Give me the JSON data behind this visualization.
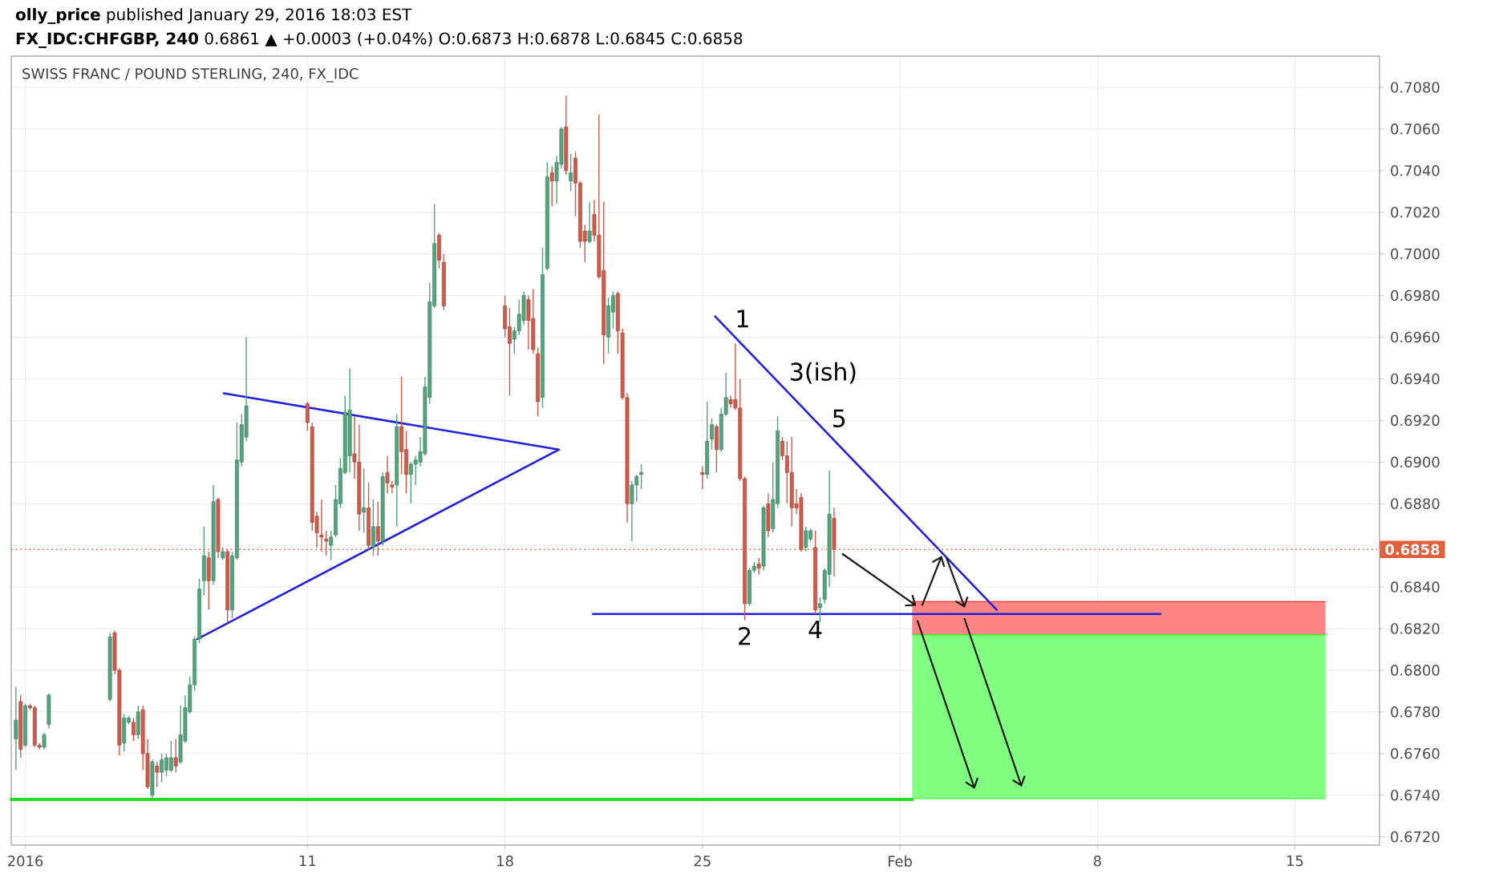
{
  "chart_data": {
    "type": "candlestick",
    "title": "SWISS FRANC / POUND STERLING, 240, FX_IDC",
    "annotations": [
      "**olly_price** published January 29, 2016 18:03 EST",
      "**FX_IDC:CHFGBP, 240** 0.6861 ▲ +0.0003 (+0.04%) O:0.6873 H:0.6878 L:0.6845 C:0.6858",
      {
        "text": "1",
        "x": "2016-01-25T22:00",
        "y": 0.6963
      },
      {
        "text": "2",
        "x": "2016-01-26T12:00",
        "y": 0.6824
      },
      {
        "text": "3(ish)",
        "x": "2016-01-27T20:00",
        "y": 0.6936
      },
      {
        "text": "4",
        "x": "2016-01-29T00:00",
        "y": 0.6827
      },
      {
        "text": "5",
        "x": "2016-01-29T08:00",
        "y": 0.6915
      }
    ],
    "xlim": [
      "2015-12-31T12:00",
      "2016-02-18T00:00"
    ],
    "xticks": [
      {
        "value": "2016-01-01",
        "label": "2016"
      },
      {
        "value": "2016-01-11",
        "label": "11"
      },
      {
        "value": "2016-01-18",
        "label": "18"
      },
      {
        "value": "2016-01-25",
        "label": "25"
      },
      {
        "value": "2016-02-01",
        "label": "Feb"
      },
      {
        "value": "2016-02-08",
        "label": "8"
      },
      {
        "value": "2016-02-15",
        "label": "15"
      }
    ],
    "ylim": [
      0.6716,
      0.7095
    ],
    "yticks": [
      {
        "value": 0.672,
        "label": "0.6720"
      },
      {
        "value": 0.674,
        "label": "0.6740"
      },
      {
        "value": 0.676,
        "label": "0.6760"
      },
      {
        "value": 0.678,
        "label": "0.6780"
      },
      {
        "value": 0.68,
        "label": "0.6800"
      },
      {
        "value": 0.682,
        "label": "0.6820"
      },
      {
        "value": 0.684,
        "label": "0.6840"
      },
      {
        "value": 0.686,
        "label": null
      },
      {
        "value": 0.688,
        "label": "0.6880"
      },
      {
        "value": 0.69,
        "label": "0.6900"
      },
      {
        "value": 0.692,
        "label": "0.6920"
      },
      {
        "value": 0.694,
        "label": "0.6940"
      },
      {
        "value": 0.696,
        "label": "0.6960"
      },
      {
        "value": 0.698,
        "label": "0.6980"
      },
      {
        "value": 0.7,
        "label": "0.7000"
      },
      {
        "value": 0.702,
        "label": "0.7020"
      },
      {
        "value": 0.704,
        "label": "0.7040"
      },
      {
        "value": 0.706,
        "label": "0.7060"
      },
      {
        "value": 0.708,
        "label": "0.7080"
      }
    ],
    "grid": true,
    "ref_lines": [
      {
        "axis": "y",
        "value": 0.6858,
        "label": "0.6858",
        "color": "#e0603c",
        "line_style": "dotted"
      }
    ],
    "series": [
      {
        "type": "line",
        "color": "#00ff00",
        "x": [
          "2016-02-01T10:24",
          "2016-02-16T02:00"
        ],
        "values": [
          0.6817,
          0.6817
        ],
        "lower": [
          0.6738,
          0.6738
        ],
        "upper": [
          0.6817,
          0.6817
        ]
      },
      {
        "type": "line",
        "color": "#ff0b0b",
        "x": [
          "2016-02-01T10:24",
          "2016-02-16T02:00"
        ],
        "values": [
          0.6833,
          0.6833
        ],
        "lower": [
          0.6817,
          0.6817
        ],
        "upper": [
          0.6833,
          0.6833
        ]
      },
      {
        "type": "line",
        "color": "#22dd22",
        "x": [
          "2015-12-31T12:00",
          "2016-02-01T10:24"
        ],
        "values": [
          0.6738,
          0.6738
        ]
      },
      {
        "type": "line",
        "color": "#2020e0",
        "x": [
          "2016-01-08T00:48",
          "2016-01-19T22:00",
          "2016-01-07T02:24"
        ],
        "values": [
          0.6933,
          0.6906,
          0.6815
        ]
      },
      {
        "type": "line",
        "color": "#2020e0",
        "x": [
          "2016-01-25T10:48",
          "2016-02-04T10:24"
        ],
        "values": [
          0.697,
          0.6829
        ]
      },
      {
        "type": "line",
        "color": "#2020e0",
        "x": [
          "2016-01-21T02:48",
          "2016-02-10T05:36"
        ],
        "values": [
          0.6827,
          0.6827
        ]
      },
      {
        "color": "#53a37d",
        "x": [
          "2015-12-31T16:00",
          "2016-01-01T00:00",
          "2016-01-01T16:00",
          "2016-01-01T20:00",
          "2016-01-04T00:00",
          "2016-01-04T12:00",
          "2016-01-04T16:00",
          "2016-01-05T00:00",
          "2016-01-05T12:00",
          "2016-01-05T20:00",
          "2016-01-06T00:00",
          "2016-01-06T04:00",
          "2016-01-06T12:00",
          "2016-01-06T16:00",
          "2016-01-06T20:00",
          "2016-01-07T00:00",
          "2016-01-07T04:00",
          "2016-01-07T08:00",
          "2016-01-07T16:00",
          "2016-01-08T00:00",
          "2016-01-08T08:00",
          "2016-01-08T12:00",
          "2016-01-08T16:00",
          "2016-01-08T20:00",
          "2016-01-11T20:00",
          "2016-01-12T00:00",
          "2016-01-12T04:00",
          "2016-01-12T08:00",
          "2016-01-12T12:00",
          "2016-01-13T00:00",
          "2016-01-13T08:00",
          "2016-01-13T16:00",
          "2016-01-14T04:00",
          "2016-01-14T16:00",
          "2016-01-14T20:00",
          "2016-01-15T00:00",
          "2016-01-15T04:00",
          "2016-01-15T08:00",
          "2016-01-15T12:00",
          "2016-01-18T08:00",
          "2016-01-18T12:00",
          "2016-01-18T16:00",
          "2016-01-19T08:00",
          "2016-01-19T12:00",
          "2016-01-19T20:00",
          "2016-01-20T00:00",
          "2016-01-20T08:00",
          "2016-01-21T00:00",
          "2016-01-21T16:00",
          "2016-01-21T20:00",
          "2016-01-22T12:00",
          "2016-01-22T16:00",
          "2016-01-22T20:00",
          "2016-01-25T04:00",
          "2016-01-25T08:00",
          "2016-01-25T16:00",
          "2016-01-25T20:00",
          "2016-01-26T16:00",
          "2016-01-26T20:00",
          "2016-01-27T04:00",
          "2016-01-27T12:00",
          "2016-01-27T16:00",
          "2016-01-28T16:00",
          "2016-01-28T20:00",
          "2016-01-29T04:00",
          "2016-01-29T08:00",
          "2016-01-29T12:00"
        ],
        "ohlc": [
          [
            0.6767,
            0.6792,
            0.6752,
            0.6776
          ],
          [
            0.6764,
            0.6784,
            0.6763,
            0.6783
          ],
          [
            0.6763,
            0.677,
            0.6762,
            0.6769
          ],
          [
            0.6774,
            0.6789,
            0.6772,
            0.6788
          ],
          [
            0.6786,
            0.6818,
            0.6785,
            0.6816
          ],
          [
            0.6765,
            0.6779,
            0.6761,
            0.6777
          ],
          [
            0.6775,
            0.6778,
            0.6774,
            0.6777
          ],
          [
            0.6769,
            0.6783,
            0.6767,
            0.678
          ],
          [
            0.674,
            0.6757,
            0.6738,
            0.6756
          ],
          [
            0.6751,
            0.676,
            0.6746,
            0.6757
          ],
          [
            0.6752,
            0.676,
            0.6749,
            0.6758
          ],
          [
            0.6752,
            0.6766,
            0.6751,
            0.6758
          ],
          [
            0.6756,
            0.6783,
            0.6755,
            0.6769
          ],
          [
            0.6766,
            0.6788,
            0.6765,
            0.6782
          ],
          [
            0.678,
            0.6797,
            0.6779,
            0.6793
          ],
          [
            0.6793,
            0.6816,
            0.679,
            0.6815
          ],
          [
            0.6815,
            0.6844,
            0.6813,
            0.6839
          ],
          [
            0.6843,
            0.6869,
            0.6836,
            0.6855
          ],
          [
            0.6843,
            0.6889,
            0.6841,
            0.6881
          ],
          [
            0.6854,
            0.6859,
            0.6853,
            0.6857
          ],
          [
            0.6829,
            0.6857,
            0.6825,
            0.6855
          ],
          [
            0.6854,
            0.6919,
            0.6853,
            0.6901
          ],
          [
            0.69,
            0.6923,
            0.6898,
            0.6918
          ],
          [
            0.6912,
            0.696,
            0.691,
            0.6927
          ],
          [
            0.686,
            0.6867,
            0.6853,
            0.6864
          ],
          [
            0.6865,
            0.6889,
            0.6864,
            0.6882
          ],
          [
            0.688,
            0.6902,
            0.6878,
            0.6897
          ],
          [
            0.6895,
            0.6932,
            0.6894,
            0.6924
          ],
          [
            0.6903,
            0.6945,
            0.6895,
            0.6925
          ],
          [
            0.6876,
            0.6897,
            0.6866,
            0.6878
          ],
          [
            0.6859,
            0.6882,
            0.6855,
            0.6869
          ],
          [
            0.6862,
            0.6895,
            0.686,
            0.6893
          ],
          [
            0.6889,
            0.6923,
            0.6869,
            0.6917
          ],
          [
            0.6894,
            0.69,
            0.688,
            0.6899
          ],
          [
            0.6899,
            0.6903,
            0.6889,
            0.6901
          ],
          [
            0.69,
            0.6912,
            0.6898,
            0.6905
          ],
          [
            0.6904,
            0.6941,
            0.6903,
            0.6936
          ],
          [
            0.6931,
            0.6986,
            0.6928,
            0.6977
          ],
          [
            0.6975,
            0.7024,
            0.6974,
            0.7005
          ],
          [
            0.6959,
            0.6965,
            0.6952,
            0.6963
          ],
          [
            0.6963,
            0.6978,
            0.6961,
            0.6971
          ],
          [
            0.6968,
            0.6982,
            0.6966,
            0.698
          ],
          [
            0.6931,
            0.7003,
            0.6926,
            0.699
          ],
          [
            0.6993,
            0.7044,
            0.6992,
            0.7037
          ],
          [
            0.7035,
            0.7047,
            0.7024,
            0.7044
          ],
          [
            0.7043,
            0.7061,
            0.7041,
            0.706
          ],
          [
            0.7035,
            0.7048,
            0.703,
            0.7039
          ],
          [
            0.7006,
            0.7025,
            0.7005,
            0.7011
          ],
          [
            0.696,
            0.6979,
            0.6952,
            0.6975
          ],
          [
            0.6972,
            0.6982,
            0.6964,
            0.698
          ],
          [
            0.688,
            0.6891,
            0.6862,
            0.6889
          ],
          [
            0.6889,
            0.6894,
            0.6881,
            0.6893
          ],
          [
            0.6894,
            0.6899,
            0.6887,
            0.6895
          ],
          [
            0.6894,
            0.6929,
            0.6892,
            0.691
          ],
          [
            0.6911,
            0.6921,
            0.6906,
            0.6918
          ],
          [
            0.6906,
            0.6926,
            0.6905,
            0.6923
          ],
          [
            0.6923,
            0.6943,
            0.6922,
            0.6931
          ],
          [
            0.6832,
            0.6849,
            0.6831,
            0.6848
          ],
          [
            0.6848,
            0.6852,
            0.6847,
            0.685
          ],
          [
            0.685,
            0.6879,
            0.6848,
            0.6878
          ],
          [
            0.6868,
            0.69,
            0.6866,
            0.6882
          ],
          [
            0.688,
            0.6922,
            0.6878,
            0.6915
          ],
          [
            0.6859,
            0.6869,
            0.6857,
            0.6867
          ],
          [
            0.6863,
            0.6868,
            0.6862,
            0.6867
          ],
          [
            0.683,
            0.6835,
            0.6823,
            0.6832
          ],
          [
            0.6834,
            0.6849,
            0.6832,
            0.6848
          ],
          [
            0.6846,
            0.6896,
            0.684,
            0.6875
          ]
        ]
      },
      {
        "color": "#d05a4a",
        "x": [
          "2015-12-31T20:00",
          "2016-01-01T04:00",
          "2016-01-01T08:00",
          "2016-01-01T12:00",
          "2016-01-04T04:00",
          "2016-01-04T08:00",
          "2016-01-04T20:00",
          "2016-01-05T04:00",
          "2016-01-05T08:00",
          "2016-01-05T16:00",
          "2016-01-06T08:00",
          "2016-01-07T12:00",
          "2016-01-07T20:00",
          "2016-01-08T04:00",
          "2016-01-11T00:00",
          "2016-01-11T04:00",
          "2016-01-11T08:00",
          "2016-01-11T12:00",
          "2016-01-11T16:00",
          "2016-01-12T16:00",
          "2016-01-12T20:00",
          "2016-01-13T04:00",
          "2016-01-13T12:00",
          "2016-01-13T20:00",
          "2016-01-14T00:00",
          "2016-01-14T08:00",
          "2016-01-14T12:00",
          "2016-01-15T16:00",
          "2016-01-15T20:00",
          "2016-01-18T00:00",
          "2016-01-18T04:00",
          "2016-01-18T20:00",
          "2016-01-19T00:00",
          "2016-01-19T04:00",
          "2016-01-19T16:00",
          "2016-01-20T04:00",
          "2016-01-20T12:00",
          "2016-01-20T16:00",
          "2016-01-20T20:00",
          "2016-01-21T04:00",
          "2016-01-21T08:00",
          "2016-01-21T12:00",
          "2016-01-22T00:00",
          "2016-01-22T04:00",
          "2016-01-22T08:00",
          "2016-01-25T00:00",
          "2016-01-25T12:00",
          "2016-01-26T00:00",
          "2016-01-26T04:00",
          "2016-01-26T08:00",
          "2016-01-26T12:00",
          "2016-01-27T00:00",
          "2016-01-27T08:00",
          "2016-01-27T20:00",
          "2016-01-28T00:00",
          "2016-01-28T04:00",
          "2016-01-28T08:00",
          "2016-01-28T12:00",
          "2016-01-29T00:00",
          "2016-01-29T16:00"
        ],
        "ohlc": [
          [
            0.6785,
            0.6788,
            0.6758,
            0.6762
          ],
          [
            0.6783,
            0.6784,
            0.6781,
            0.6782
          ],
          [
            0.6782,
            0.6783,
            0.6763,
            0.6764
          ],
          [
            0.6764,
            0.6765,
            0.6762,
            0.6763
          ],
          [
            0.6818,
            0.6819,
            0.6798,
            0.68
          ],
          [
            0.68,
            0.6801,
            0.6759,
            0.6764
          ],
          [
            0.6775,
            0.6777,
            0.6766,
            0.6769
          ],
          [
            0.6781,
            0.6783,
            0.6752,
            0.676
          ],
          [
            0.676,
            0.6767,
            0.6743,
            0.6744
          ],
          [
            0.6754,
            0.6756,
            0.6744,
            0.6751
          ],
          [
            0.6758,
            0.6767,
            0.6751,
            0.6754
          ],
          [
            0.6854,
            0.6857,
            0.6829,
            0.6843
          ],
          [
            0.6882,
            0.6883,
            0.6854,
            0.6857
          ],
          [
            0.6857,
            0.6858,
            0.6823,
            0.6829
          ],
          [
            0.6928,
            0.6929,
            0.6915,
            0.6919
          ],
          [
            0.6917,
            0.6919,
            0.6867,
            0.6871
          ],
          [
            0.6874,
            0.6876,
            0.6859,
            0.6866
          ],
          [
            0.6865,
            0.6882,
            0.6857,
            0.6864
          ],
          [
            0.6863,
            0.6867,
            0.6855,
            0.6862
          ],
          [
            0.6904,
            0.6922,
            0.6892,
            0.69
          ],
          [
            0.69,
            0.6918,
            0.6867,
            0.6875
          ],
          [
            0.6878,
            0.689,
            0.6858,
            0.686
          ],
          [
            0.6869,
            0.6881,
            0.6855,
            0.6862
          ],
          [
            0.6895,
            0.6903,
            0.6885,
            0.689
          ],
          [
            0.6889,
            0.6891,
            0.6885,
            0.6888
          ],
          [
            0.6917,
            0.6941,
            0.6894,
            0.6905
          ],
          [
            0.6906,
            0.6915,
            0.6885,
            0.6894
          ],
          [
            0.7009,
            0.701,
            0.6993,
            0.6997
          ],
          [
            0.6996,
            0.7,
            0.6973,
            0.6975
          ],
          [
            0.6975,
            0.698,
            0.696,
            0.6964
          ],
          [
            0.6965,
            0.6974,
            0.6932,
            0.6957
          ],
          [
            0.6978,
            0.698,
            0.6954,
            0.6968
          ],
          [
            0.6969,
            0.6983,
            0.6952,
            0.6954
          ],
          [
            0.6952,
            0.6955,
            0.6922,
            0.6929
          ],
          [
            0.7039,
            0.7042,
            0.7023,
            0.7035
          ],
          [
            0.7061,
            0.7076,
            0.7038,
            0.704
          ],
          [
            0.7046,
            0.7049,
            0.7018,
            0.7034
          ],
          [
            0.7034,
            0.7035,
            0.7003,
            0.7006
          ],
          [
            0.7011,
            0.7014,
            0.6996,
            0.7006
          ],
          [
            0.7019,
            0.7026,
            0.7006,
            0.7009
          ],
          [
            0.7009,
            0.7067,
            0.6988,
            0.6989
          ],
          [
            0.6992,
            0.7025,
            0.6947,
            0.6961
          ],
          [
            0.6981,
            0.6982,
            0.6952,
            0.6963
          ],
          [
            0.6962,
            0.6964,
            0.693,
            0.6931
          ],
          [
            0.6931,
            0.6933,
            0.6871,
            0.688
          ],
          [
            0.6895,
            0.6898,
            0.6887,
            0.6894
          ],
          [
            0.6917,
            0.6918,
            0.6895,
            0.6906
          ],
          [
            0.693,
            0.6932,
            0.6926,
            0.6928
          ],
          [
            0.693,
            0.6957,
            0.6925,
            0.6926
          ],
          [
            0.6926,
            0.694,
            0.6891,
            0.6892
          ],
          [
            0.6892,
            0.6893,
            0.6824,
            0.6832
          ],
          [
            0.6851,
            0.6854,
            0.6846,
            0.6849
          ],
          [
            0.688,
            0.6885,
            0.6864,
            0.6867
          ],
          [
            0.691,
            0.6912,
            0.6901,
            0.6903
          ],
          [
            0.6903,
            0.691,
            0.688,
            0.6895
          ],
          [
            0.6895,
            0.6912,
            0.6869,
            0.6878
          ],
          [
            0.688,
            0.6887,
            0.6875,
            0.6878
          ],
          [
            0.6883,
            0.6885,
            0.6857,
            0.6858
          ],
          [
            0.6859,
            0.6867,
            0.6827,
            0.6829
          ],
          [
            0.6873,
            0.6878,
            0.6845,
            0.6858
          ]
        ]
      }
    ]
  }
}
